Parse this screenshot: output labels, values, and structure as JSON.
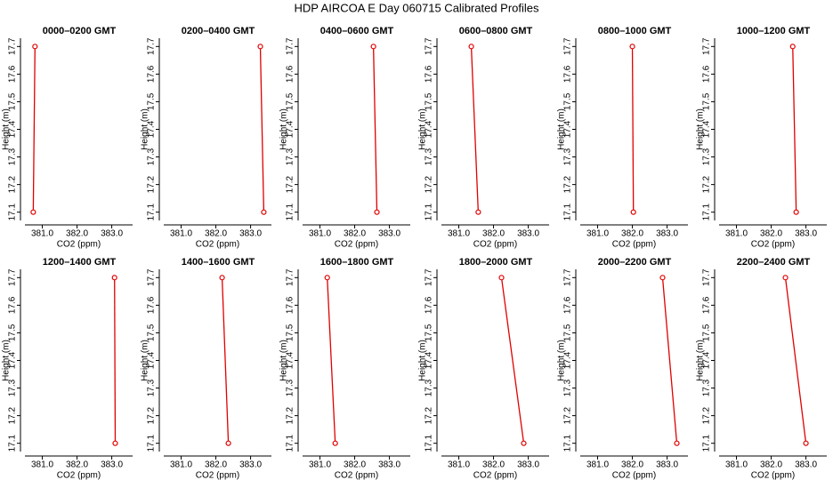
{
  "title": "HDP AIRCOA E  Day 060715  Calibrated Profiles",
  "chart_data": [
    {
      "type": "line",
      "title": "0000–0200 GMT",
      "x_label": "CO2 (ppm)",
      "y_label": "Height (m)",
      "color": "#e00000",
      "x": [
        380.79,
        380.74
      ],
      "values": [
        17.7,
        17.1
      ],
      "xlim": [
        380.5,
        383.6
      ],
      "ylim": [
        17.07,
        17.73
      ],
      "xticks": [
        {
          "value": 381,
          "label": "381.0"
        },
        {
          "value": 382,
          "label": "382.0"
        },
        {
          "value": 383,
          "label": "383.0"
        }
      ],
      "yticks": [
        17.1,
        17.2,
        17.3,
        17.4,
        17.5,
        17.6,
        17.7
      ]
    },
    {
      "type": "line",
      "title": "0200–0400 GMT",
      "x_label": "CO2 (ppm)",
      "y_label": "Height (m)",
      "color": "#e00000",
      "x": [
        383.28,
        383.38
      ],
      "values": [
        17.7,
        17.1
      ],
      "xlim": [
        380.5,
        383.6
      ],
      "ylim": [
        17.07,
        17.73
      ],
      "xticks": [
        {
          "value": 381,
          "label": "381.0"
        },
        {
          "value": 382,
          "label": "382.0"
        },
        {
          "value": 383,
          "label": "383.0"
        }
      ],
      "yticks": [
        17.1,
        17.2,
        17.3,
        17.4,
        17.5,
        17.6,
        17.7
      ]
    },
    {
      "type": "line",
      "title": "0400–0600 GMT",
      "x_label": "CO2 (ppm)",
      "y_label": "Height (m)",
      "color": "#e00000",
      "x": [
        382.54,
        382.64
      ],
      "values": [
        17.7,
        17.1
      ],
      "xlim": [
        380.5,
        383.6
      ],
      "ylim": [
        17.07,
        17.73
      ],
      "xticks": [
        {
          "value": 381,
          "label": "381.0"
        },
        {
          "value": 382,
          "label": "382.0"
        },
        {
          "value": 383,
          "label": "383.0"
        }
      ],
      "yticks": [
        17.1,
        17.2,
        17.3,
        17.4,
        17.5,
        17.6,
        17.7
      ]
    },
    {
      "type": "line",
      "title": "0600–0800 GMT",
      "x_label": "CO2 (ppm)",
      "y_label": "Height (m)",
      "color": "#e00000",
      "x": [
        381.36,
        381.56
      ],
      "values": [
        17.7,
        17.1
      ],
      "xlim": [
        380.5,
        383.6
      ],
      "ylim": [
        17.07,
        17.73
      ],
      "xticks": [
        {
          "value": 381,
          "label": "381.0"
        },
        {
          "value": 382,
          "label": "382.0"
        },
        {
          "value": 383,
          "label": "383.0"
        }
      ],
      "yticks": [
        17.1,
        17.2,
        17.3,
        17.4,
        17.5,
        17.6,
        17.7
      ]
    },
    {
      "type": "line",
      "title": "0800–1000 GMT",
      "x_label": "CO2 (ppm)",
      "y_label": "Height (m)",
      "color": "#e00000",
      "x": [
        382.0,
        382.03
      ],
      "values": [
        17.7,
        17.1
      ],
      "xlim": [
        380.5,
        383.6
      ],
      "ylim": [
        17.07,
        17.73
      ],
      "xticks": [
        {
          "value": 381,
          "label": "381.0"
        },
        {
          "value": 382,
          "label": "382.0"
        },
        {
          "value": 383,
          "label": "383.0"
        }
      ],
      "yticks": [
        17.1,
        17.2,
        17.3,
        17.4,
        17.5,
        17.6,
        17.7
      ]
    },
    {
      "type": "line",
      "title": "1000–1200 GMT",
      "x_label": "CO2 (ppm)",
      "y_label": "Height (m)",
      "color": "#e00000",
      "x": [
        382.62,
        382.72
      ],
      "values": [
        17.7,
        17.1
      ],
      "xlim": [
        380.5,
        383.6
      ],
      "ylim": [
        17.07,
        17.73
      ],
      "xticks": [
        {
          "value": 381,
          "label": "381.0"
        },
        {
          "value": 382,
          "label": "382.0"
        },
        {
          "value": 383,
          "label": "383.0"
        }
      ],
      "yticks": [
        17.1,
        17.2,
        17.3,
        17.4,
        17.5,
        17.6,
        17.7
      ]
    },
    {
      "type": "line",
      "title": "1200–1400 GMT",
      "x_label": "CO2 (ppm)",
      "y_label": "Height (m)",
      "color": "#e00000",
      "x": [
        383.08,
        383.1
      ],
      "values": [
        17.7,
        17.1
      ],
      "xlim": [
        380.5,
        383.6
      ],
      "ylim": [
        17.07,
        17.73
      ],
      "xticks": [
        {
          "value": 381,
          "label": "381.0"
        },
        {
          "value": 382,
          "label": "382.0"
        },
        {
          "value": 383,
          "label": "383.0"
        }
      ],
      "yticks": [
        17.1,
        17.2,
        17.3,
        17.4,
        17.5,
        17.6,
        17.7
      ]
    },
    {
      "type": "line",
      "title": "1400–1600 GMT",
      "x_label": "CO2 (ppm)",
      "y_label": "Height (m)",
      "color": "#e00000",
      "x": [
        382.18,
        382.36
      ],
      "values": [
        17.7,
        17.1
      ],
      "xlim": [
        380.5,
        383.6
      ],
      "ylim": [
        17.07,
        17.73
      ],
      "xticks": [
        {
          "value": 381,
          "label": "381.0"
        },
        {
          "value": 382,
          "label": "382.0"
        },
        {
          "value": 383,
          "label": "383.0"
        }
      ],
      "yticks": [
        17.1,
        17.2,
        17.3,
        17.4,
        17.5,
        17.6,
        17.7
      ]
    },
    {
      "type": "line",
      "title": "1600–1800 GMT",
      "x_label": "CO2 (ppm)",
      "y_label": "Height (m)",
      "color": "#e00000",
      "x": [
        381.21,
        381.44
      ],
      "values": [
        17.7,
        17.1
      ],
      "xlim": [
        380.5,
        383.6
      ],
      "ylim": [
        17.07,
        17.73
      ],
      "xticks": [
        {
          "value": 381,
          "label": "381.0"
        },
        {
          "value": 382,
          "label": "382.0"
        },
        {
          "value": 383,
          "label": "383.0"
        }
      ],
      "yticks": [
        17.1,
        17.2,
        17.3,
        17.4,
        17.5,
        17.6,
        17.7
      ]
    },
    {
      "type": "line",
      "title": "1800–2000 GMT",
      "x_label": "CO2 (ppm)",
      "y_label": "Height (m)",
      "color": "#e00000",
      "x": [
        382.23,
        382.87
      ],
      "values": [
        17.7,
        17.1
      ],
      "xlim": [
        380.5,
        383.6
      ],
      "ylim": [
        17.07,
        17.73
      ],
      "xticks": [
        {
          "value": 381,
          "label": "381.0"
        },
        {
          "value": 382,
          "label": "382.0"
        },
        {
          "value": 383,
          "label": "383.0"
        }
      ],
      "yticks": [
        17.1,
        17.2,
        17.3,
        17.4,
        17.5,
        17.6,
        17.7
      ]
    },
    {
      "type": "line",
      "title": "2000–2200 GMT",
      "x_label": "CO2 (ppm)",
      "y_label": "Height (m)",
      "color": "#e00000",
      "x": [
        382.87,
        383.28
      ],
      "values": [
        17.7,
        17.1
      ],
      "xlim": [
        380.5,
        383.6
      ],
      "ylim": [
        17.07,
        17.73
      ],
      "xticks": [
        {
          "value": 381,
          "label": "381.0"
        },
        {
          "value": 382,
          "label": "382.0"
        },
        {
          "value": 383,
          "label": "383.0"
        }
      ],
      "yticks": [
        17.1,
        17.2,
        17.3,
        17.4,
        17.5,
        17.6,
        17.7
      ]
    },
    {
      "type": "line",
      "title": "2200–2400 GMT",
      "x_label": "CO2 (ppm)",
      "y_label": "Height (m)",
      "color": "#e00000",
      "x": [
        382.41,
        383.0
      ],
      "values": [
        17.7,
        17.1
      ],
      "xlim": [
        380.5,
        383.6
      ],
      "ylim": [
        17.07,
        17.73
      ],
      "xticks": [
        {
          "value": 381,
          "label": "381.0"
        },
        {
          "value": 382,
          "label": "382.0"
        },
        {
          "value": 383,
          "label": "383.0"
        }
      ],
      "yticks": [
        17.1,
        17.2,
        17.3,
        17.4,
        17.5,
        17.6,
        17.7
      ]
    }
  ]
}
